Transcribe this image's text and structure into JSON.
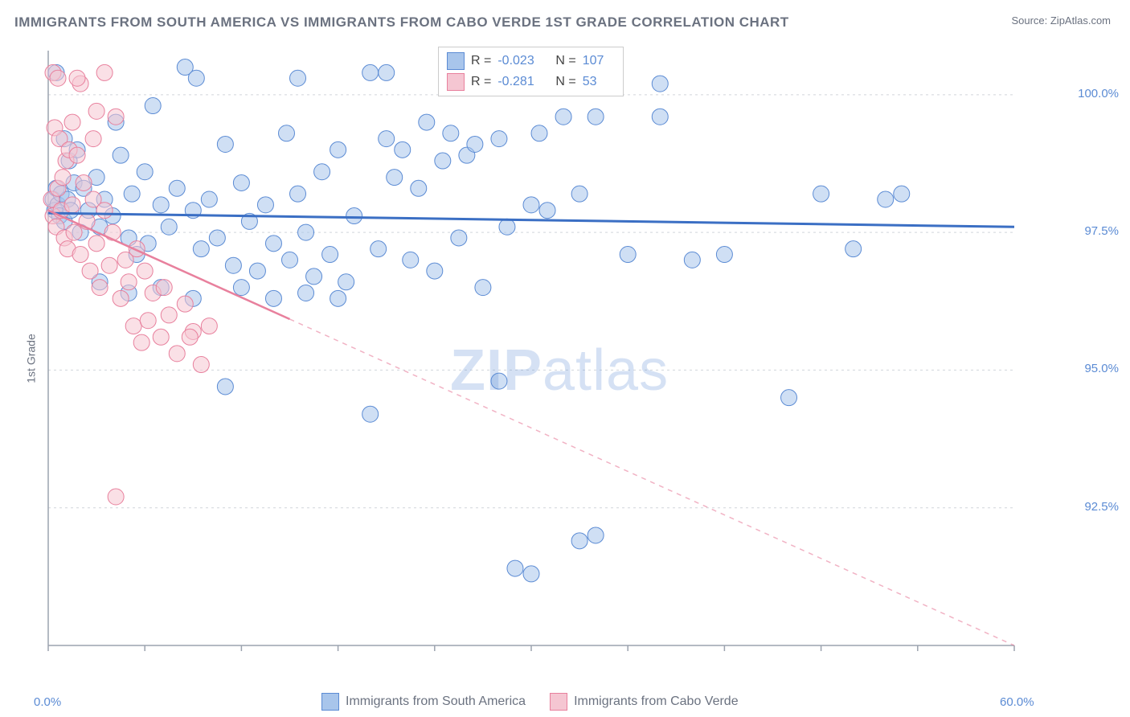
{
  "title": "IMMIGRANTS FROM SOUTH AMERICA VS IMMIGRANTS FROM CABO VERDE 1ST GRADE CORRELATION CHART",
  "source": "Source: ZipAtlas.com",
  "ylabel": "1st Grade",
  "watermark_bold": "ZIP",
  "watermark_light": "atlas",
  "chart": {
    "type": "scatter",
    "xlim": [
      0,
      60
    ],
    "ylim": [
      90,
      100.8
    ],
    "xtick_labels": [
      {
        "v": 0,
        "t": "0.0%"
      },
      {
        "v": 60,
        "t": "60.0%"
      }
    ],
    "xtick_positions": [
      0,
      6,
      12,
      18,
      24,
      30,
      36,
      42,
      48,
      54,
      60
    ],
    "ytick_labels": [
      {
        "v": 92.5,
        "t": "92.5%"
      },
      {
        "v": 95.0,
        "t": "95.0%"
      },
      {
        "v": 97.5,
        "t": "97.5%"
      },
      {
        "v": 100.0,
        "t": "100.0%"
      }
    ],
    "grid_color": "#d1d5db",
    "axis_color": "#9ca3af",
    "background_color": "#ffffff",
    "series": [
      {
        "name": "Immigrants from South America",
        "color_fill": "#a8c5eb",
        "color_stroke": "#5b8bd4",
        "r_value": "-0.023",
        "n_value": "107",
        "regression": {
          "x1": 0,
          "y1": 97.85,
          "x2": 60,
          "y2": 97.6,
          "dashed": false,
          "color": "#3b6fc4",
          "width": 3
        },
        "points": [
          [
            0.3,
            98.1
          ],
          [
            0.4,
            97.9
          ],
          [
            0.5,
            98.3
          ],
          [
            0.6,
            98.0
          ],
          [
            0.7,
            97.8
          ],
          [
            0.8,
            98.2
          ],
          [
            1.0,
            97.7
          ],
          [
            1.2,
            98.1
          ],
          [
            1.4,
            97.9
          ],
          [
            1.6,
            98.4
          ],
          [
            0.5,
            100.4
          ],
          [
            1.0,
            99.2
          ],
          [
            1.3,
            98.8
          ],
          [
            1.8,
            99.0
          ],
          [
            2.0,
            97.5
          ],
          [
            2.2,
            98.3
          ],
          [
            2.5,
            97.9
          ],
          [
            3.0,
            98.5
          ],
          [
            3.2,
            97.6
          ],
          [
            3.5,
            98.1
          ],
          [
            4.0,
            97.8
          ],
          [
            4.2,
            99.5
          ],
          [
            4.5,
            98.9
          ],
          [
            5.0,
            97.4
          ],
          [
            5.2,
            98.2
          ],
          [
            5.5,
            97.1
          ],
          [
            6.0,
            98.6
          ],
          [
            6.2,
            97.3
          ],
          [
            6.5,
            99.8
          ],
          [
            7.0,
            98.0
          ],
          [
            7.5,
            97.6
          ],
          [
            8.0,
            98.3
          ],
          [
            8.5,
            100.5
          ],
          [
            9.0,
            97.9
          ],
          [
            9.2,
            100.3
          ],
          [
            9.5,
            97.2
          ],
          [
            10.0,
            98.1
          ],
          [
            10.5,
            97.4
          ],
          [
            11.0,
            99.1
          ],
          [
            11.5,
            96.9
          ],
          [
            12.0,
            98.4
          ],
          [
            12.5,
            97.7
          ],
          [
            13.0,
            96.8
          ],
          [
            13.5,
            98.0
          ],
          [
            14.0,
            97.3
          ],
          [
            14.8,
            99.3
          ],
          [
            15.0,
            97.0
          ],
          [
            15.5,
            98.2
          ],
          [
            16.0,
            97.5
          ],
          [
            16.5,
            96.7
          ],
          [
            17.0,
            98.6
          ],
          [
            17.5,
            97.1
          ],
          [
            18.0,
            99.0
          ],
          [
            18.5,
            96.6
          ],
          [
            19.0,
            97.8
          ],
          [
            15.5,
            100.3
          ],
          [
            20.0,
            100.4
          ],
          [
            20.5,
            97.2
          ],
          [
            21.0,
            99.2
          ],
          [
            21.5,
            98.5
          ],
          [
            21.0,
            100.4
          ],
          [
            22.0,
            99.0
          ],
          [
            22.5,
            97.0
          ],
          [
            23.0,
            98.3
          ],
          [
            23.5,
            99.5
          ],
          [
            24.0,
            96.8
          ],
          [
            24.5,
            98.8
          ],
          [
            25.0,
            99.3
          ],
          [
            25.5,
            97.4
          ],
          [
            26.0,
            98.9
          ],
          [
            26.5,
            99.1
          ],
          [
            27.0,
            96.5
          ],
          [
            28.0,
            99.2
          ],
          [
            28.5,
            97.6
          ],
          [
            29.0,
            100.3
          ],
          [
            30.0,
            98.0
          ],
          [
            30.5,
            99.3
          ],
          [
            31.0,
            97.9
          ],
          [
            32.0,
            99.6
          ],
          [
            33.0,
            98.2
          ],
          [
            34.0,
            99.6
          ],
          [
            35.0,
            100.4
          ],
          [
            36.0,
            97.1
          ],
          [
            38.0,
            99.6
          ],
          [
            40.0,
            97.0
          ],
          [
            42.0,
            97.1
          ],
          [
            38.0,
            100.2
          ],
          [
            52.0,
            98.1
          ],
          [
            53.0,
            98.2
          ],
          [
            46.0,
            94.5
          ],
          [
            20.0,
            94.2
          ],
          [
            28.0,
            94.8
          ],
          [
            33.0,
            91.9
          ],
          [
            30.0,
            91.3
          ],
          [
            11.0,
            94.7
          ],
          [
            3.2,
            96.6
          ],
          [
            5.0,
            96.4
          ],
          [
            7.0,
            96.5
          ],
          [
            9.0,
            96.3
          ],
          [
            12.0,
            96.5
          ],
          [
            14.0,
            96.3
          ],
          [
            16.0,
            96.4
          ],
          [
            18.0,
            96.3
          ],
          [
            48.0,
            98.2
          ],
          [
            34.0,
            92.0
          ],
          [
            29.0,
            91.4
          ],
          [
            50.0,
            97.2
          ]
        ]
      },
      {
        "name": "Immigrants from Cabo Verde",
        "color_fill": "#f5c6d2",
        "color_stroke": "#e8809d",
        "r_value": "-0.281",
        "n_value": "53",
        "regression": {
          "x1": 0,
          "y1": 97.9,
          "x2": 60,
          "y2": 90.0,
          "dashed": true,
          "dashed_from_x": 15,
          "color": "#e8809d",
          "width": 2.5
        },
        "points": [
          [
            0.2,
            98.1
          ],
          [
            0.3,
            97.8
          ],
          [
            0.4,
            99.4
          ],
          [
            0.5,
            97.6
          ],
          [
            0.6,
            98.3
          ],
          [
            0.7,
            99.2
          ],
          [
            0.8,
            97.9
          ],
          [
            0.9,
            98.5
          ],
          [
            1.0,
            97.4
          ],
          [
            1.1,
            98.8
          ],
          [
            0.3,
            100.4
          ],
          [
            0.6,
            100.3
          ],
          [
            1.2,
            97.2
          ],
          [
            1.3,
            99.0
          ],
          [
            1.5,
            98.0
          ],
          [
            1.6,
            97.5
          ],
          [
            1.8,
            98.9
          ],
          [
            2.0,
            97.1
          ],
          [
            2.2,
            98.4
          ],
          [
            2.4,
            97.7
          ],
          [
            2.6,
            96.8
          ],
          [
            2.8,
            98.1
          ],
          [
            3.0,
            97.3
          ],
          [
            3.2,
            96.5
          ],
          [
            3.5,
            97.9
          ],
          [
            3.8,
            96.9
          ],
          [
            4.0,
            97.5
          ],
          [
            4.2,
            99.6
          ],
          [
            4.5,
            96.3
          ],
          [
            4.8,
            97.0
          ],
          [
            5.0,
            96.6
          ],
          [
            5.3,
            95.8
          ],
          [
            5.5,
            97.2
          ],
          [
            5.8,
            95.5
          ],
          [
            6.0,
            96.8
          ],
          [
            6.2,
            95.9
          ],
          [
            6.5,
            96.4
          ],
          [
            7.0,
            95.6
          ],
          [
            7.5,
            96.0
          ],
          [
            8.0,
            95.3
          ],
          [
            8.5,
            96.2
          ],
          [
            9.0,
            95.7
          ],
          [
            9.5,
            95.1
          ],
          [
            10.0,
            95.8
          ],
          [
            3.5,
            100.4
          ],
          [
            1.5,
            99.5
          ],
          [
            2.8,
            99.2
          ],
          [
            4.2,
            92.7
          ],
          [
            7.2,
            96.5
          ],
          [
            8.8,
            95.6
          ],
          [
            2.0,
            100.2
          ],
          [
            1.8,
            100.3
          ],
          [
            3.0,
            99.7
          ]
        ]
      }
    ]
  },
  "legend_bottom": [
    {
      "label": "Immigrants from South America",
      "fill": "#a8c5eb",
      "stroke": "#5b8bd4"
    },
    {
      "label": "Immigrants from Cabo Verde",
      "fill": "#f5c6d2",
      "stroke": "#e8809d"
    }
  ]
}
